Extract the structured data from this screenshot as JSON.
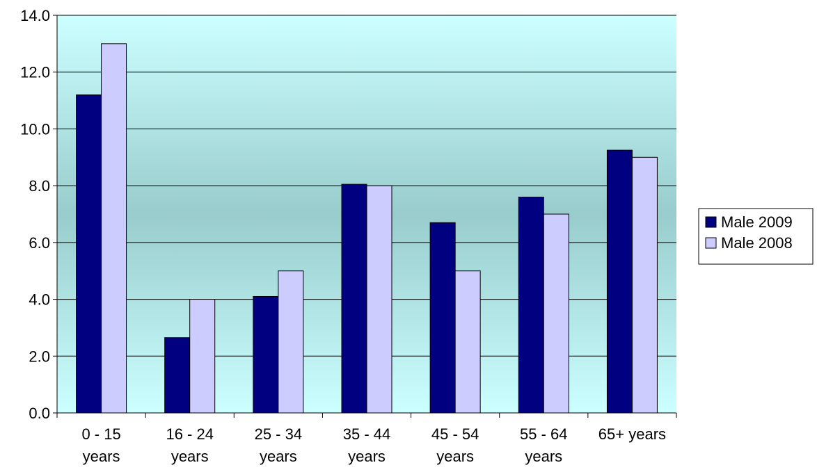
{
  "chart_data": {
    "type": "bar",
    "categories": [
      [
        "0 - 15",
        "years"
      ],
      [
        "16 - 24",
        "years"
      ],
      [
        "25 - 34",
        "years"
      ],
      [
        "35 - 44",
        "years"
      ],
      [
        "45 - 54",
        "years"
      ],
      [
        "55 - 64",
        "years"
      ],
      [
        "65+ years"
      ]
    ],
    "series": [
      {
        "name": "Male 2009",
        "color": "#000080",
        "values": [
          11.2,
          2.65,
          4.1,
          8.05,
          6.7,
          7.6,
          9.25
        ]
      },
      {
        "name": "Male 2008",
        "color": "#ccccff",
        "values": [
          13.0,
          4.0,
          5.0,
          8.0,
          5.0,
          7.0,
          9.0
        ]
      }
    ],
    "ylim": [
      0,
      14
    ],
    "yticks": [
      "0.0",
      "2.0",
      "4.0",
      "6.0",
      "8.0",
      "10.0",
      "12.0",
      "14.0"
    ],
    "grid": true,
    "legend": "right",
    "plot_background": [
      "#ccffff",
      "#99cccc"
    ]
  }
}
